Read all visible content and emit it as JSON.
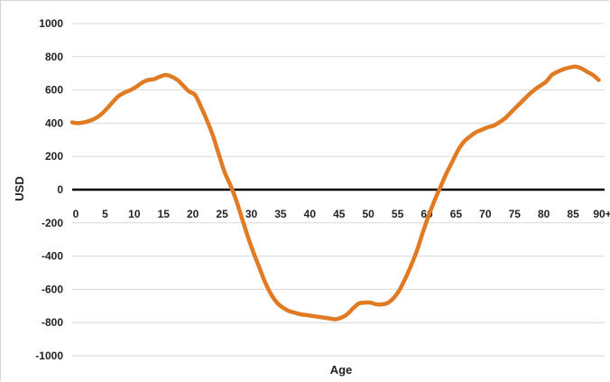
{
  "chart_data": {
    "type": "line",
    "title": "",
    "xlabel": "Age",
    "ylabel": "USD",
    "ylim": [
      -1000,
      1000
    ],
    "y_ticks": [
      1000,
      800,
      600,
      400,
      200,
      0,
      -200,
      -400,
      -600,
      -800,
      -1000
    ],
    "x_tick_labels": [
      "0",
      "5",
      "10",
      "15",
      "20",
      "25",
      "30",
      "35",
      "40",
      "45",
      "50",
      "55",
      "60",
      "65",
      "70",
      "75",
      "80",
      "85",
      "90+"
    ],
    "x_tick_values": [
      0,
      5,
      10,
      15,
      20,
      25,
      30,
      35,
      40,
      45,
      50,
      55,
      60,
      65,
      70,
      75,
      80,
      85,
      90
    ],
    "xlim": [
      0,
      91
    ],
    "grid": true,
    "legend": "none",
    "line_color": "#e07b24",
    "zero_line_color": "#000000",
    "grid_color": "#d9d9d9",
    "series": [
      {
        "x": [
          0,
          1,
          2,
          3,
          4,
          5,
          6,
          7,
          8,
          9,
          10,
          11,
          12,
          13,
          14,
          15,
          16,
          17,
          18,
          19,
          20,
          21,
          22,
          23,
          24,
          25,
          26,
          27,
          28,
          29,
          30,
          31,
          32,
          33,
          34,
          35,
          36,
          37,
          38,
          39,
          40,
          41,
          42,
          43,
          44,
          45,
          46,
          47,
          48,
          49,
          50,
          51,
          52,
          53,
          54,
          55,
          56,
          57,
          58,
          59,
          60,
          61,
          62,
          63,
          64,
          65,
          66,
          67,
          68,
          69,
          70,
          71,
          72,
          73,
          74,
          75,
          76,
          77,
          78,
          79,
          80,
          81,
          82,
          83,
          84,
          85,
          86,
          87,
          88,
          89,
          90
        ],
        "values": [
          405,
          400,
          405,
          415,
          430,
          455,
          490,
          530,
          565,
          585,
          600,
          620,
          645,
          660,
          665,
          680,
          690,
          680,
          660,
          625,
          590,
          570,
          500,
          420,
          330,
          220,
          110,
          30,
          -60,
          -170,
          -280,
          -380,
          -470,
          -560,
          -630,
          -680,
          -710,
          -730,
          -740,
          -750,
          -755,
          -760,
          -765,
          -770,
          -775,
          -780,
          -770,
          -750,
          -715,
          -685,
          -680,
          -680,
          -690,
          -690,
          -680,
          -650,
          -600,
          -530,
          -450,
          -360,
          -250,
          -150,
          -60,
          20,
          100,
          170,
          240,
          290,
          320,
          345,
          360,
          375,
          385,
          405,
          430,
          465,
          500,
          535,
          570,
          600,
          625,
          650,
          690,
          710,
          725,
          735,
          740,
          730,
          710,
          690,
          660
        ]
      }
    ]
  }
}
